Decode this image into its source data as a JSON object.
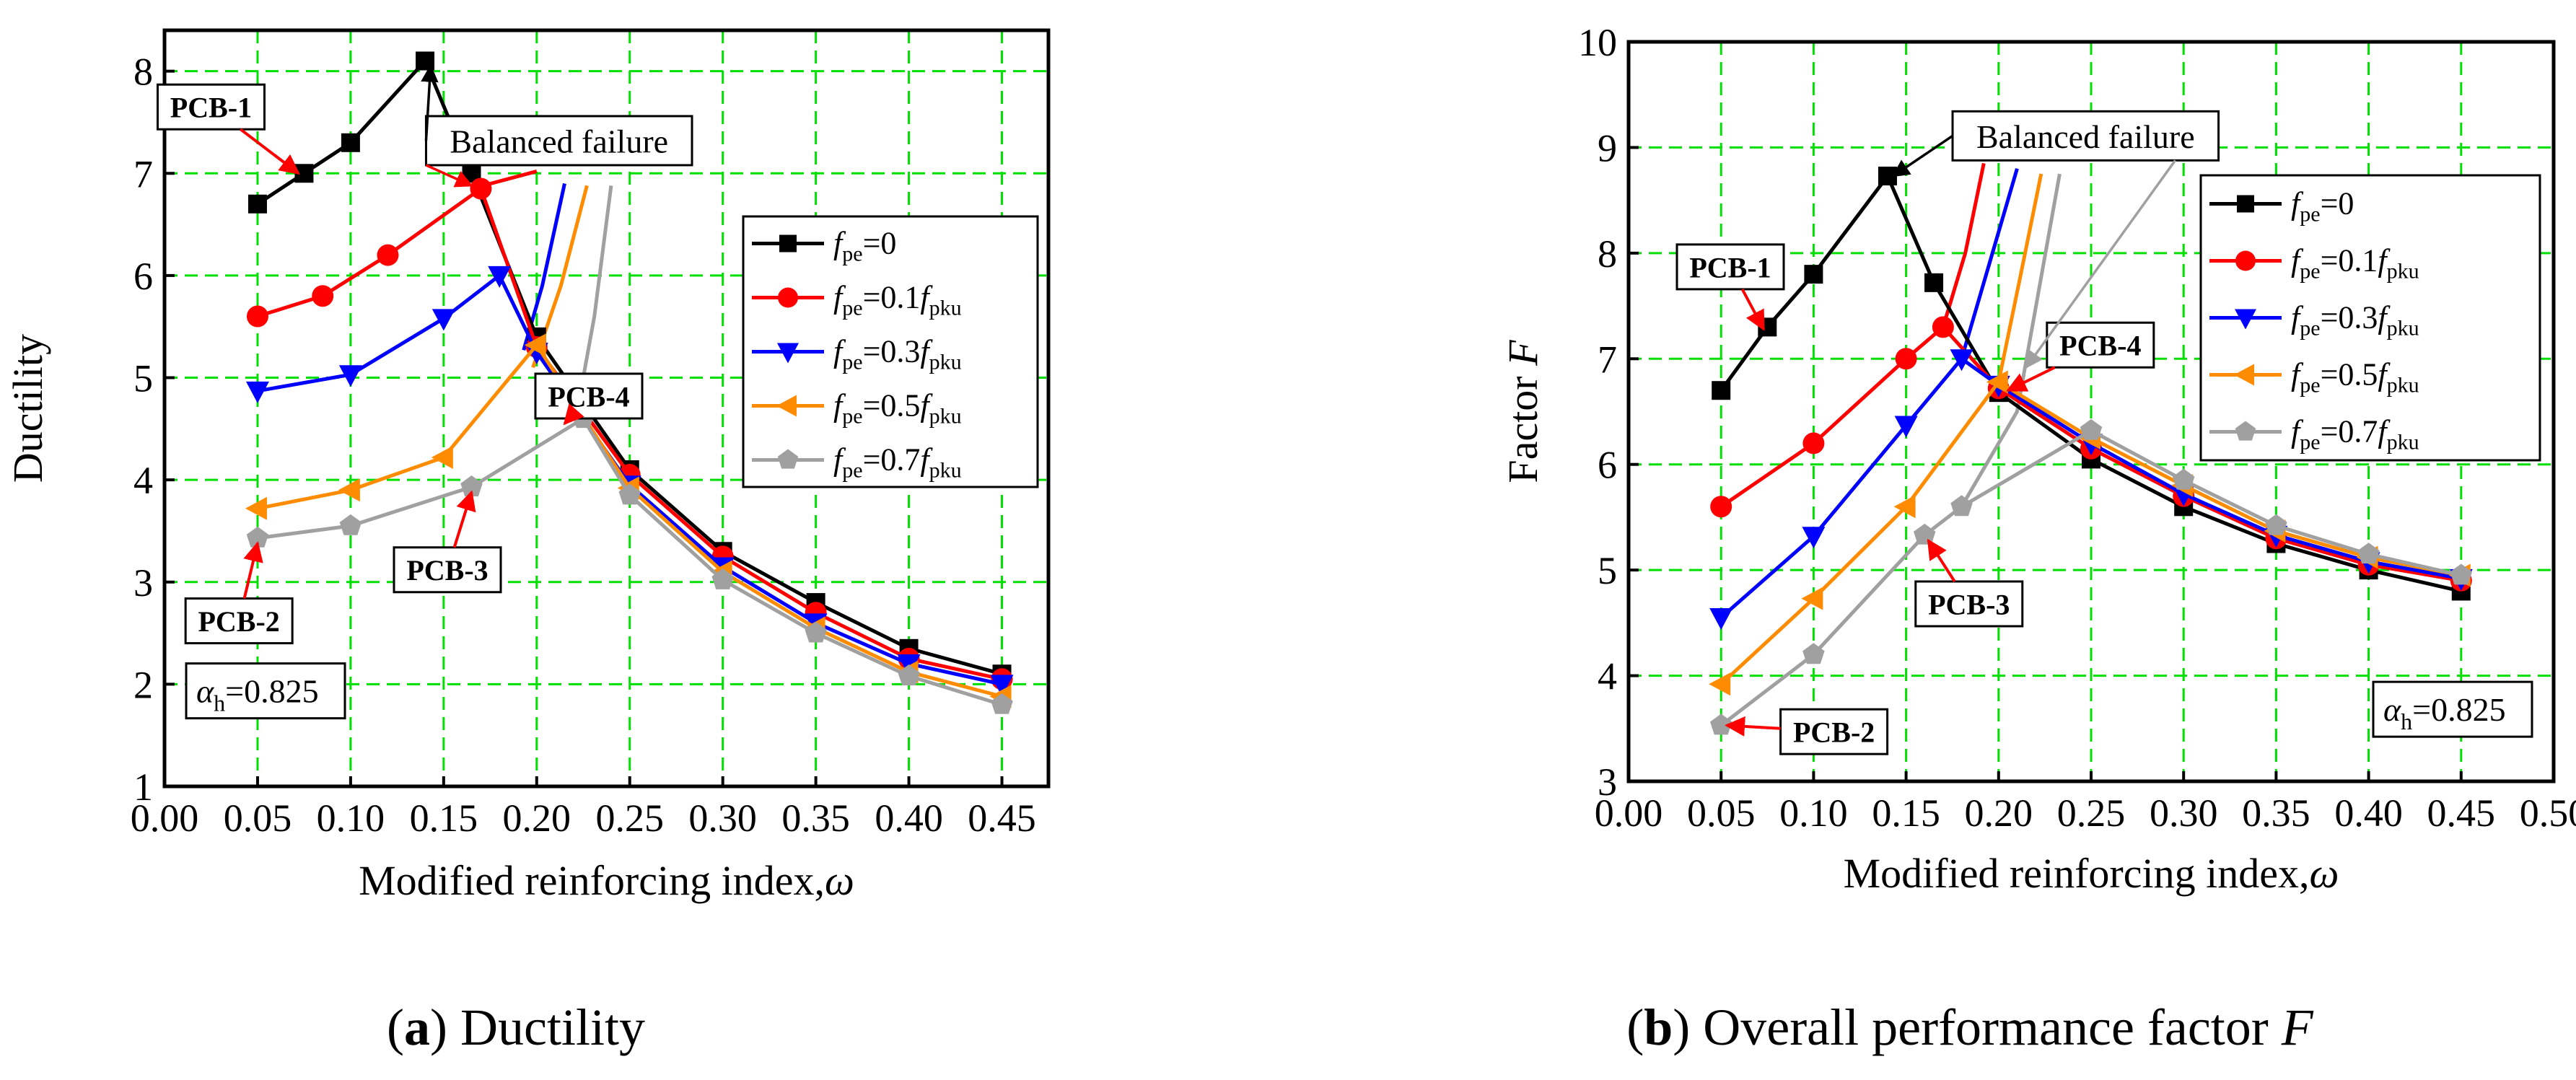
{
  "chart_data": [
    {
      "type": "line",
      "panel_label": "a",
      "caption": "Ductility",
      "xlabel": "Modified  reinforcing index,",
      "xlabel_symbol": "ω",
      "ylabel": "Ductility",
      "xlim": [
        0.0,
        0.475
      ],
      "ylim": [
        1,
        8.4
      ],
      "xticks": [
        "0.00",
        "0.05",
        "0.10",
        "0.15",
        "0.20",
        "0.25",
        "0.30",
        "0.35",
        "0.40",
        "0.45"
      ],
      "yticks": [
        "1",
        "2",
        "3",
        "4",
        "5",
        "6",
        "7",
        "8"
      ],
      "alpha_note": {
        "sym": "α",
        "sub": "h",
        "text": "=0.825"
      },
      "legend": [
        {
          "pre": "f",
          "sub1": "pe",
          "mid": "=0",
          "f2": "",
          "sub2": ""
        },
        {
          "pre": "f",
          "sub1": "pe",
          "mid": "=0.1",
          "f2": "f",
          "sub2": "pku"
        },
        {
          "pre": "f",
          "sub1": "pe",
          "mid": "=0.3",
          "f2": "f",
          "sub2": "pku"
        },
        {
          "pre": "f",
          "sub1": "pe",
          "mid": "=0.5",
          "f2": "f",
          "sub2": "pku"
        },
        {
          "pre": "f",
          "sub1": "pe",
          "mid": "=0.7",
          "f2": "f",
          "sub2": "pku"
        }
      ],
      "series": [
        {
          "name": "fpe=0",
          "color": "#000000",
          "marker": "square",
          "x": [
            0.05,
            0.075,
            0.1,
            0.14,
            0.165,
            0.2,
            0.25,
            0.3,
            0.35,
            0.4,
            0.45
          ],
          "y": [
            6.7,
            7.0,
            7.3,
            8.1,
            7.0,
            5.4,
            4.1,
            3.3,
            2.8,
            2.35,
            2.1
          ]
        },
        {
          "name": "fpe=0.1fpku",
          "color": "#ff0000",
          "marker": "circle",
          "x": [
            0.05,
            0.085,
            0.12,
            0.17,
            0.2,
            0.25,
            0.3,
            0.35,
            0.4,
            0.45
          ],
          "y": [
            5.6,
            5.8,
            6.2,
            6.85,
            5.3,
            4.05,
            3.25,
            2.7,
            2.25,
            2.05
          ]
        },
        {
          "name": "fpe=0.3fpku",
          "color": "#0000ff",
          "marker": "triangle-down",
          "x": [
            0.05,
            0.1,
            0.15,
            0.18,
            0.2,
            0.25,
            0.3,
            0.35,
            0.4,
            0.45
          ],
          "y": [
            4.87,
            5.03,
            5.58,
            6.0,
            5.25,
            3.95,
            3.15,
            2.6,
            2.2,
            2.0
          ]
        },
        {
          "name": "fpe=0.5fpku",
          "color": "#ff8c00",
          "marker": "triangle-left",
          "x": [
            0.05,
            0.1,
            0.15,
            0.2,
            0.25,
            0.3,
            0.35,
            0.4,
            0.45
          ],
          "y": [
            3.72,
            3.9,
            4.22,
            5.32,
            3.92,
            3.1,
            2.55,
            2.12,
            1.88
          ]
        },
        {
          "name": "fpe=0.7fpku",
          "color": "#a0a0a0",
          "marker": "pentagon",
          "x": [
            0.05,
            0.1,
            0.165,
            0.225,
            0.25,
            0.3,
            0.35,
            0.4,
            0.45
          ],
          "y": [
            3.43,
            3.55,
            3.93,
            4.6,
            3.85,
            3.02,
            2.5,
            2.08,
            1.8
          ]
        }
      ],
      "balanced_failure_curves": [
        {
          "color": "#ff0000",
          "x": [
            0.165,
            0.2
          ],
          "y": [
            6.85,
            7.02
          ]
        },
        {
          "color": "#0000ff",
          "x": [
            0.193,
            0.203,
            0.215
          ],
          "y": [
            5.27,
            5.9,
            6.9
          ]
        },
        {
          "color": "#ff8c00",
          "x": [
            0.198,
            0.213,
            0.227
          ],
          "y": [
            5.1,
            5.9,
            6.88
          ]
        },
        {
          "color": "#a0a0a0",
          "x": [
            0.221,
            0.231,
            0.24
          ],
          "y": [
            4.6,
            5.6,
            6.88
          ]
        }
      ],
      "annotations": [
        {
          "label": "PCB-1",
          "box_x": 0.025,
          "box_y": 7.65,
          "to_x": 0.072,
          "to_y": 7.0
        },
        {
          "label": "PCB-2",
          "box_x": 0.04,
          "box_y": 2.62,
          "to_x": 0.05,
          "to_y": 3.38
        },
        {
          "label": "PCB-3",
          "box_x": 0.152,
          "box_y": 3.12,
          "to_x": 0.165,
          "to_y": 3.88
        },
        {
          "label": "PCB-4",
          "box_x": 0.228,
          "box_y": 4.82,
          "to_x": 0.215,
          "to_y": 4.55
        }
      ],
      "balanced_label": {
        "text": "Balanced failure",
        "box_x": 0.212,
        "box_y": 7.32,
        "arrows": [
          [
            0.143,
            8.05
          ],
          [
            0.165,
            6.88
          ]
        ]
      }
    },
    {
      "type": "line",
      "panel_label": "b",
      "caption": "Overall performance factor",
      "caption_symbol": "F",
      "xlabel": "Modified reinforcing index,",
      "xlabel_symbol": "ω",
      "ylabel": "Factor",
      "ylabel_symbol": "F",
      "xlim": [
        0.0,
        0.5
      ],
      "ylim": [
        3,
        10
      ],
      "xticks": [
        "0.00",
        "0.05",
        "0.10",
        "0.15",
        "0.20",
        "0.25",
        "0.30",
        "0.35",
        "0.40",
        "0.45",
        "0.50"
      ],
      "yticks": [
        "3",
        "4",
        "5",
        "6",
        "7",
        "8",
        "9",
        "10"
      ],
      "alpha_note": {
        "sym": "α",
        "sub": "h",
        "text": "=0.825"
      },
      "legend": [
        {
          "pre": "f",
          "sub1": "pe",
          "mid": "=0",
          "f2": "",
          "sub2": ""
        },
        {
          "pre": "f",
          "sub1": "pe",
          "mid": "=0.1",
          "f2": "f",
          "sub2": "pku"
        },
        {
          "pre": "f",
          "sub1": "pe",
          "mid": "=0.3",
          "f2": "f",
          "sub2": "pku"
        },
        {
          "pre": "f",
          "sub1": "pe",
          "mid": "=0.5",
          "f2": "f",
          "sub2": "pku"
        },
        {
          "pre": "f",
          "sub1": "pe",
          "mid": "=0.7",
          "f2": "f",
          "sub2": "pku"
        }
      ],
      "series": [
        {
          "name": "fpe=0",
          "color": "#000000",
          "marker": "square",
          "x": [
            0.05,
            0.075,
            0.1,
            0.14,
            0.165,
            0.2,
            0.25,
            0.3,
            0.35,
            0.4,
            0.45
          ],
          "y": [
            6.7,
            7.3,
            7.8,
            8.73,
            7.72,
            6.68,
            6.05,
            5.6,
            5.25,
            5.0,
            4.8
          ]
        },
        {
          "name": "fpe=0.1fpku",
          "color": "#ff0000",
          "marker": "circle",
          "x": [
            0.05,
            0.1,
            0.15,
            0.17,
            0.2,
            0.25,
            0.3,
            0.35,
            0.4,
            0.45
          ],
          "y": [
            5.6,
            6.2,
            7.0,
            7.3,
            6.72,
            6.15,
            5.7,
            5.3,
            5.05,
            4.9
          ]
        },
        {
          "name": "fpe=0.3fpku",
          "color": "#0000ff",
          "marker": "triangle-down",
          "x": [
            0.05,
            0.1,
            0.15,
            0.18,
            0.2,
            0.25,
            0.3,
            0.35,
            0.4,
            0.45
          ],
          "y": [
            4.55,
            5.32,
            6.37,
            7.0,
            6.75,
            6.2,
            5.72,
            5.33,
            5.08,
            4.92
          ]
        },
        {
          "name": "fpe=0.5fpku",
          "color": "#ff8c00",
          "marker": "triangle-left",
          "x": [
            0.05,
            0.1,
            0.15,
            0.2,
            0.25,
            0.3,
            0.35,
            0.4,
            0.45
          ],
          "y": [
            3.92,
            4.73,
            5.6,
            6.78,
            6.25,
            5.8,
            5.37,
            5.12,
            4.95
          ]
        },
        {
          "name": "fpe=0.7fpku",
          "color": "#a0a0a0",
          "marker": "pentagon",
          "x": [
            0.05,
            0.1,
            0.16,
            0.18,
            0.25,
            0.3,
            0.35,
            0.4,
            0.45
          ],
          "y": [
            3.53,
            4.2,
            5.33,
            5.6,
            6.32,
            5.85,
            5.42,
            5.15,
            4.95
          ]
        }
      ],
      "balanced_failure_curves": [
        {
          "color": "#ff0000",
          "x": [
            0.17,
            0.182,
            0.192
          ],
          "y": [
            7.3,
            8.0,
            8.85
          ]
        },
        {
          "color": "#0000ff",
          "x": [
            0.18,
            0.195,
            0.21
          ],
          "y": [
            7.0,
            7.9,
            8.8
          ]
        },
        {
          "color": "#ff8c00",
          "x": [
            0.2,
            0.212,
            0.223
          ],
          "y": [
            6.78,
            7.8,
            8.75
          ]
        },
        {
          "color": "#a0a0a0",
          "x": [
            0.18,
            0.21,
            0.233
          ],
          "y": [
            5.6,
            6.5,
            8.75
          ]
        }
      ],
      "annotations": [
        {
          "label": "PCB-1",
          "box_x": 0.055,
          "box_y": 7.87,
          "to_x": 0.073,
          "to_y": 7.28
        },
        {
          "label": "PCB-2",
          "box_x": 0.111,
          "box_y": 3.47,
          "to_x": 0.053,
          "to_y": 3.53
        },
        {
          "label": "PCB-3",
          "box_x": 0.184,
          "box_y": 4.68,
          "to_x": 0.162,
          "to_y": 5.28
        },
        {
          "label": "PCB-4",
          "box_x": 0.255,
          "box_y": 7.13,
          "to_x": 0.205,
          "to_y": 6.7
        }
      ],
      "balanced_label": {
        "text": "Balanced failure",
        "box_x": 0.247,
        "box_y": 9.11,
        "arrows": [
          [
            0.143,
            8.73
          ],
          [
            0.215,
            6.92
          ]
        ]
      }
    }
  ],
  "captions": {
    "a_letter": "a",
    "a_text": "Ductility",
    "b_letter": "b",
    "b_text": "Overall performance factor",
    "b_symbol": "F"
  }
}
